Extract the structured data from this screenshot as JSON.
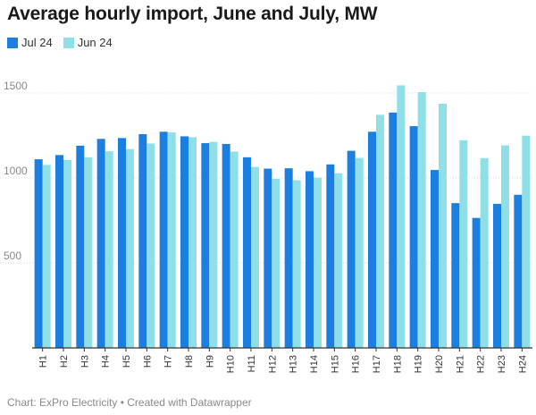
{
  "chart_data": {
    "type": "bar",
    "title": "Average hourly import, June and July, MW",
    "categories": [
      "H1",
      "H2",
      "H3",
      "H4",
      "H5",
      "H6",
      "H7",
      "H8",
      "H9",
      "H10",
      "H11",
      "H12",
      "H13",
      "H14",
      "H15",
      "H16",
      "H17",
      "H18",
      "H19",
      "H20",
      "H21",
      "H22",
      "H23",
      "H24"
    ],
    "series": [
      {
        "name": "Jul 24",
        "color": "#1a7fe0",
        "values": [
          1110,
          1135,
          1190,
          1230,
          1235,
          1258,
          1272,
          1245,
          1205,
          1200,
          1122,
          1055,
          1057,
          1040,
          1080,
          1160,
          1272,
          1385,
          1305,
          1047,
          852,
          765,
          848,
          901
        ]
      },
      {
        "name": "Jun 24",
        "color": "#8fdfe6",
        "values": [
          1077,
          1106,
          1122,
          1157,
          1170,
          1203,
          1268,
          1240,
          1212,
          1155,
          1065,
          995,
          987,
          1002,
          1028,
          1118,
          1372,
          1545,
          1505,
          1437,
          1222,
          1117,
          1192,
          1249
        ]
      }
    ],
    "yticks": [
      500,
      1000,
      1500
    ],
    "ylim": [
      0,
      1600
    ],
    "grid": true,
    "legend_position": "top-left"
  },
  "footer": {
    "source": "Chart: ExPro Electricity • Created with Datawrapper"
  }
}
